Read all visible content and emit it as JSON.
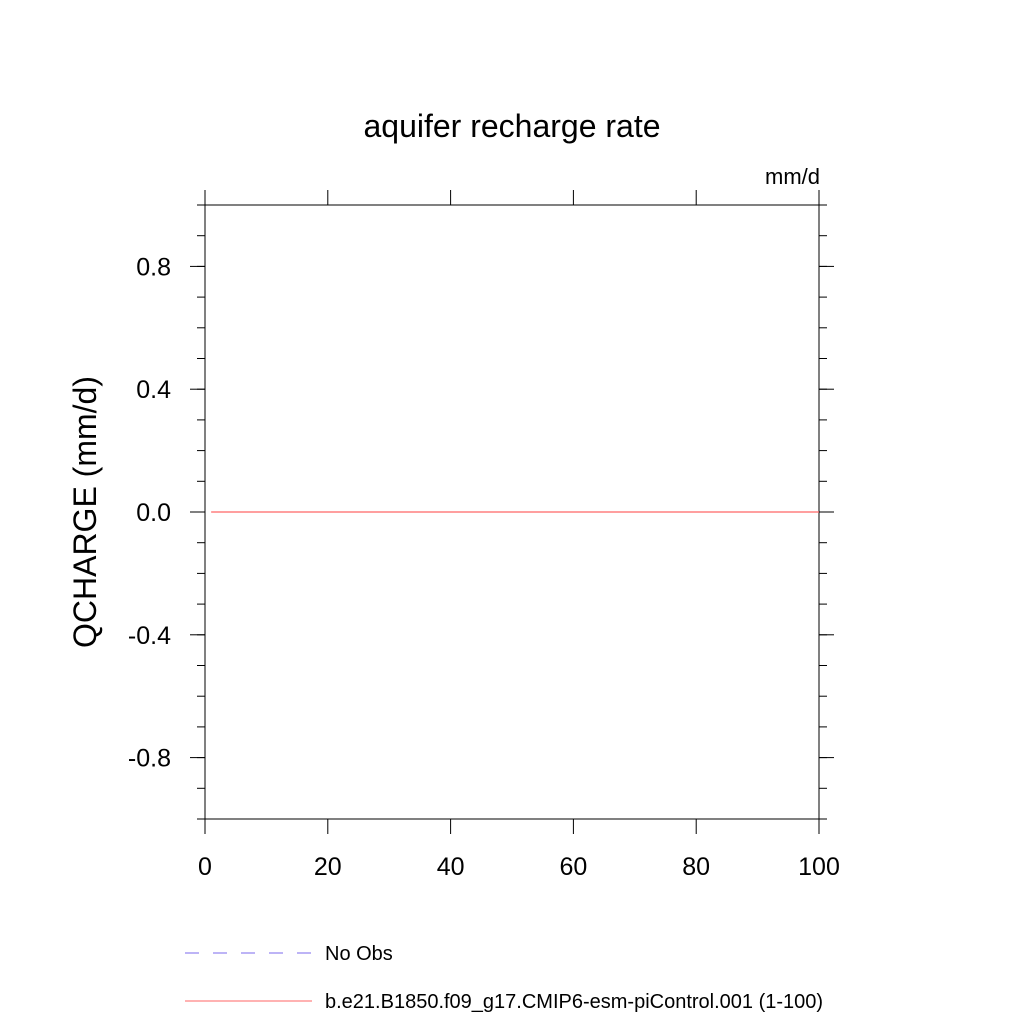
{
  "chart_data": {
    "type": "line",
    "title": "aquifer recharge rate",
    "units_label": "mm/d",
    "ylabel": "QCHARGE  (mm/d)",
    "xlabel": "",
    "xlim": [
      0,
      100
    ],
    "ylim": [
      -1.0,
      1.0
    ],
    "x_ticks": [
      0,
      20,
      40,
      60,
      80,
      100
    ],
    "x_tick_labels": [
      "0",
      "20",
      "40",
      "60",
      "80",
      "100"
    ],
    "x_minor_ticks": [],
    "y_ticks": [
      0.8,
      0.4,
      0.0,
      -0.4,
      -0.8
    ],
    "y_tick_labels": [
      "0.8",
      "0.4",
      "0.0",
      "-0.4",
      "-0.8"
    ],
    "y_minor_step": 0.1,
    "grid": false,
    "legend_position": "bottom",
    "series": [
      {
        "name": "No Obs",
        "color": "#7b68ee",
        "style": "dashed",
        "x": [],
        "y": []
      },
      {
        "name": "b.e21.B1850.f09_g17.CMIP6-esm-piControl.001 (1-100)",
        "color": "#ff6666",
        "style": "solid",
        "x": [
          1,
          100
        ],
        "y": [
          0.0,
          0.0
        ]
      }
    ]
  }
}
